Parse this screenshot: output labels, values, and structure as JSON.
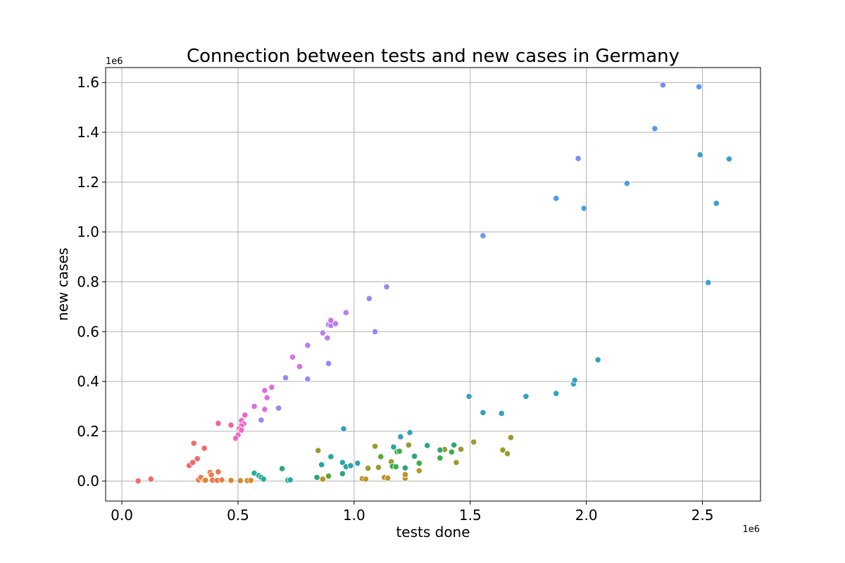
{
  "chart_data": {
    "type": "scatter",
    "title": "Connection between tests and new cases in Germany",
    "xlabel": "tests done",
    "ylabel": "new cases",
    "x_offset_label": "1e6",
    "y_offset_label": "1e6",
    "xlim": [
      -0.07,
      2.75
    ],
    "ylim": [
      -0.08,
      1.66
    ],
    "xticks": [
      0.0,
      0.5,
      1.0,
      1.5,
      2.0,
      2.5
    ],
    "xtick_labels": [
      "0.0",
      "0.5",
      "1.0",
      "1.5",
      "2.0",
      "2.5"
    ],
    "yticks": [
      0.0,
      0.2,
      0.4,
      0.6,
      0.8,
      1.0,
      1.2,
      1.4,
      1.6
    ],
    "ytick_labels": [
      "0.0",
      "0.2",
      "0.4",
      "0.6",
      "0.8",
      "1.0",
      "1.2",
      "1.4",
      "1.6"
    ],
    "grid": true,
    "legend": "none",
    "points": [
      {
        "x": 0.07,
        "y": 0.001,
        "color": "#f2696b"
      },
      {
        "x": 0.125,
        "y": 0.008,
        "color": "#f2696b"
      },
      {
        "x": 0.29,
        "y": 0.063,
        "color": "#f2696b"
      },
      {
        "x": 0.31,
        "y": 0.152,
        "color": "#f2696b"
      },
      {
        "x": 0.305,
        "y": 0.075,
        "color": "#f2696b"
      },
      {
        "x": 0.325,
        "y": 0.09,
        "color": "#f2696b"
      },
      {
        "x": 0.355,
        "y": 0.132,
        "color": "#f2696b"
      },
      {
        "x": 0.33,
        "y": 0.005,
        "color": "#ec7a4a"
      },
      {
        "x": 0.34,
        "y": 0.015,
        "color": "#ec7a4a"
      },
      {
        "x": 0.355,
        "y": 0.003,
        "color": "#ec7a4a"
      },
      {
        "x": 0.38,
        "y": 0.035,
        "color": "#ec7a4a"
      },
      {
        "x": 0.385,
        "y": 0.025,
        "color": "#ec7a4a"
      },
      {
        "x": 0.39,
        "y": 0.004,
        "color": "#ec7a4a"
      },
      {
        "x": 0.41,
        "y": 0.003,
        "color": "#ec7a4a"
      },
      {
        "x": 0.415,
        "y": 0.037,
        "color": "#ec7a4a"
      },
      {
        "x": 0.43,
        "y": 0.005,
        "color": "#ec7a4a"
      },
      {
        "x": 0.36,
        "y": 0.004,
        "color": "#d58a2e"
      },
      {
        "x": 0.47,
        "y": 0.003,
        "color": "#d58a2e"
      },
      {
        "x": 0.51,
        "y": 0.002,
        "color": "#d58a2e"
      },
      {
        "x": 0.54,
        "y": 0.002,
        "color": "#d58a2e"
      },
      {
        "x": 0.555,
        "y": 0.003,
        "color": "#d58a2e"
      },
      {
        "x": 0.865,
        "y": 0.008,
        "color": "#c0922a"
      },
      {
        "x": 1.035,
        "y": 0.01,
        "color": "#c0922a"
      },
      {
        "x": 1.05,
        "y": 0.008,
        "color": "#c0922a"
      },
      {
        "x": 1.13,
        "y": 0.015,
        "color": "#c0922a"
      },
      {
        "x": 1.145,
        "y": 0.012,
        "color": "#c0922a"
      },
      {
        "x": 1.22,
        "y": 0.012,
        "color": "#c0922a"
      },
      {
        "x": 1.22,
        "y": 0.026,
        "color": "#c0922a"
      },
      {
        "x": 1.28,
        "y": 0.042,
        "color": "#c0922a"
      },
      {
        "x": 0.845,
        "y": 0.123,
        "color": "#9a9a2c"
      },
      {
        "x": 1.06,
        "y": 0.052,
        "color": "#9a9a2c"
      },
      {
        "x": 1.09,
        "y": 0.14,
        "color": "#9a9a2c"
      },
      {
        "x": 1.105,
        "y": 0.055,
        "color": "#9a9a2c"
      },
      {
        "x": 1.16,
        "y": 0.078,
        "color": "#9a9a2c"
      },
      {
        "x": 1.235,
        "y": 0.145,
        "color": "#9a9a2c"
      },
      {
        "x": 1.39,
        "y": 0.127,
        "color": "#9a9a2c"
      },
      {
        "x": 1.44,
        "y": 0.075,
        "color": "#9a9a2c"
      },
      {
        "x": 1.46,
        "y": 0.128,
        "color": "#9a9a2c"
      },
      {
        "x": 1.515,
        "y": 0.157,
        "color": "#9a9a2c"
      },
      {
        "x": 1.64,
        "y": 0.125,
        "color": "#9a9a2c"
      },
      {
        "x": 1.66,
        "y": 0.11,
        "color": "#9a9a2c"
      },
      {
        "x": 1.675,
        "y": 0.175,
        "color": "#9a9a2c"
      },
      {
        "x": 0.89,
        "y": 0.02,
        "color": "#59a73a"
      },
      {
        "x": 1.115,
        "y": 0.098,
        "color": "#59a73a"
      },
      {
        "x": 1.165,
        "y": 0.06,
        "color": "#3bae46"
      },
      {
        "x": 1.18,
        "y": 0.058,
        "color": "#3bae46"
      },
      {
        "x": 1.185,
        "y": 0.118,
        "color": "#3bae46"
      },
      {
        "x": 1.195,
        "y": 0.12,
        "color": "#3bae46"
      },
      {
        "x": 1.28,
        "y": 0.072,
        "color": "#3bae46"
      },
      {
        "x": 1.37,
        "y": 0.093,
        "color": "#3bae46"
      },
      {
        "x": 1.42,
        "y": 0.117,
        "color": "#3bae46"
      },
      {
        "x": 0.84,
        "y": 0.015,
        "color": "#2ba77a"
      },
      {
        "x": 0.95,
        "y": 0.03,
        "color": "#2ba77a"
      },
      {
        "x": 1.22,
        "y": 0.053,
        "color": "#2ba77a"
      },
      {
        "x": 1.26,
        "y": 0.1,
        "color": "#2ba77a"
      },
      {
        "x": 1.315,
        "y": 0.143,
        "color": "#2ba77a"
      },
      {
        "x": 1.37,
        "y": 0.125,
        "color": "#2ba77a"
      },
      {
        "x": 1.43,
        "y": 0.145,
        "color": "#2ba77a"
      },
      {
        "x": 0.69,
        "y": 0.05,
        "color": "#2ba77a"
      },
      {
        "x": 0.57,
        "y": 0.032,
        "color": "#2aa99a"
      },
      {
        "x": 0.59,
        "y": 0.022,
        "color": "#2aa99a"
      },
      {
        "x": 0.6,
        "y": 0.015,
        "color": "#2aa99a"
      },
      {
        "x": 0.61,
        "y": 0.008,
        "color": "#2aa99a"
      },
      {
        "x": 0.715,
        "y": 0.004,
        "color": "#2aa99a"
      },
      {
        "x": 0.725,
        "y": 0.005,
        "color": "#2aa99a"
      },
      {
        "x": 0.86,
        "y": 0.066,
        "color": "#2aa4a8"
      },
      {
        "x": 0.9,
        "y": 0.098,
        "color": "#2aa4a8"
      },
      {
        "x": 0.95,
        "y": 0.075,
        "color": "#2aa4a8"
      },
      {
        "x": 0.965,
        "y": 0.058,
        "color": "#2aa4a8"
      },
      {
        "x": 0.985,
        "y": 0.062,
        "color": "#2aa4a8"
      },
      {
        "x": 1.015,
        "y": 0.072,
        "color": "#2aa4a8"
      },
      {
        "x": 1.17,
        "y": 0.137,
        "color": "#2aa4a8"
      },
      {
        "x": 0.955,
        "y": 0.21,
        "color": "#33a2c0"
      },
      {
        "x": 1.2,
        "y": 0.178,
        "color": "#33a2c0"
      },
      {
        "x": 1.24,
        "y": 0.195,
        "color": "#33a2c0"
      },
      {
        "x": 1.495,
        "y": 0.34,
        "color": "#33a2c0"
      },
      {
        "x": 1.555,
        "y": 0.275,
        "color": "#33a2c0"
      },
      {
        "x": 1.635,
        "y": 0.272,
        "color": "#33a2c0"
      },
      {
        "x": 1.74,
        "y": 0.34,
        "color": "#33a2c0"
      },
      {
        "x": 1.87,
        "y": 0.352,
        "color": "#33a2c0"
      },
      {
        "x": 1.945,
        "y": 0.39,
        "color": "#33a2c0"
      },
      {
        "x": 1.95,
        "y": 0.405,
        "color": "#33a2c0"
      },
      {
        "x": 2.05,
        "y": 0.487,
        "color": "#33a2c0"
      },
      {
        "x": 2.525,
        "y": 0.797,
        "color": "#3ba0d0"
      },
      {
        "x": 2.56,
        "y": 1.115,
        "color": "#3ba0d0"
      },
      {
        "x": 2.615,
        "y": 1.293,
        "color": "#3ba0d0"
      },
      {
        "x": 2.49,
        "y": 1.31,
        "color": "#3ba0d0"
      },
      {
        "x": 2.175,
        "y": 1.195,
        "color": "#45a0dc"
      },
      {
        "x": 1.99,
        "y": 1.095,
        "color": "#45a0dc"
      },
      {
        "x": 1.87,
        "y": 1.135,
        "color": "#4a9de6"
      },
      {
        "x": 2.295,
        "y": 1.415,
        "color": "#5a98ee"
      },
      {
        "x": 2.485,
        "y": 1.583,
        "color": "#5a98ee"
      },
      {
        "x": 1.555,
        "y": 0.985,
        "color": "#6f95f0"
      },
      {
        "x": 1.965,
        "y": 1.295,
        "color": "#7a8ef2"
      },
      {
        "x": 2.33,
        "y": 1.59,
        "color": "#7a8ef2"
      },
      {
        "x": 0.6,
        "y": 0.245,
        "color": "#9b85f2"
      },
      {
        "x": 0.675,
        "y": 0.293,
        "color": "#9b85f2"
      },
      {
        "x": 0.705,
        "y": 0.415,
        "color": "#9b85f2"
      },
      {
        "x": 0.8,
        "y": 0.41,
        "color": "#9b85f2"
      },
      {
        "x": 0.89,
        "y": 0.472,
        "color": "#9b85f2"
      },
      {
        "x": 1.065,
        "y": 0.733,
        "color": "#9b85f2"
      },
      {
        "x": 1.09,
        "y": 0.6,
        "color": "#9b85f2"
      },
      {
        "x": 1.14,
        "y": 0.78,
        "color": "#9b85f2"
      },
      {
        "x": 0.8,
        "y": 0.545,
        "color": "#b87ef0"
      },
      {
        "x": 0.865,
        "y": 0.595,
        "color": "#b87ef0"
      },
      {
        "x": 0.885,
        "y": 0.575,
        "color": "#b87ef0"
      },
      {
        "x": 0.89,
        "y": 0.628,
        "color": "#b87ef0"
      },
      {
        "x": 0.9,
        "y": 0.625,
        "color": "#b87ef0"
      },
      {
        "x": 0.92,
        "y": 0.632,
        "color": "#b87ef0"
      },
      {
        "x": 0.965,
        "y": 0.676,
        "color": "#b87ef0"
      },
      {
        "x": 0.735,
        "y": 0.498,
        "color": "#dd6ee6"
      },
      {
        "x": 0.765,
        "y": 0.46,
        "color": "#dd6ee6"
      },
      {
        "x": 0.9,
        "y": 0.645,
        "color": "#dd6ee6"
      },
      {
        "x": 0.615,
        "y": 0.364,
        "color": "#dd6ee6"
      },
      {
        "x": 0.625,
        "y": 0.335,
        "color": "#dd6ee6"
      },
      {
        "x": 0.645,
        "y": 0.377,
        "color": "#dd6ee6"
      },
      {
        "x": 0.615,
        "y": 0.288,
        "color": "#dd6ee6"
      },
      {
        "x": 0.57,
        "y": 0.3,
        "color": "#dd6ee6"
      },
      {
        "x": 0.53,
        "y": 0.265,
        "color": "#eb68c6"
      },
      {
        "x": 0.515,
        "y": 0.243,
        "color": "#eb68c6"
      },
      {
        "x": 0.525,
        "y": 0.23,
        "color": "#eb68c6"
      },
      {
        "x": 0.515,
        "y": 0.222,
        "color": "#eb68c6"
      },
      {
        "x": 0.505,
        "y": 0.21,
        "color": "#eb68c6"
      },
      {
        "x": 0.51,
        "y": 0.2,
        "color": "#eb68c6"
      },
      {
        "x": 0.515,
        "y": 0.205,
        "color": "#eb68c6"
      },
      {
        "x": 0.5,
        "y": 0.185,
        "color": "#eb68c6"
      },
      {
        "x": 0.49,
        "y": 0.172,
        "color": "#eb68c6"
      },
      {
        "x": 0.415,
        "y": 0.232,
        "color": "#f2669a"
      },
      {
        "x": 0.47,
        "y": 0.225,
        "color": "#f2669a"
      }
    ]
  }
}
